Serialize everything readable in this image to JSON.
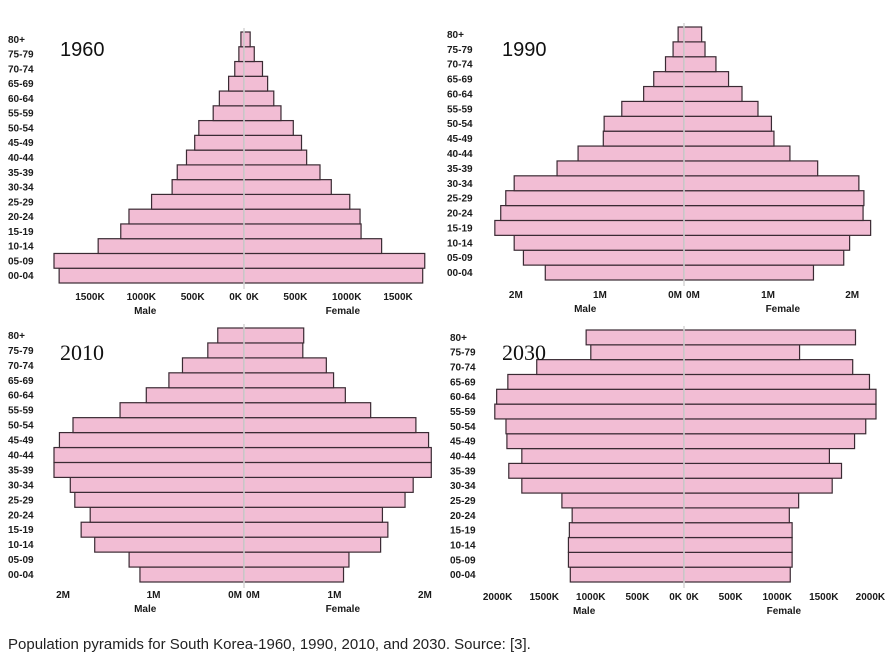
{
  "caption": "Population pyramids for South Korea-1960, 1990, 2010, and 2030. Source: [3].",
  "colors": {
    "bar_fill": "#f2bdd4",
    "bar_stroke": "#3a2a33",
    "center_line": "#d6d6d6",
    "background": "#ffffff"
  },
  "chart_data": [
    {
      "type": "bar",
      "orientation": "horizontal-pyramid",
      "title": "1960",
      "categories": [
        "00-04",
        "05-09",
        "10-14",
        "15-19",
        "20-24",
        "25-29",
        "30-34",
        "35-39",
        "40-44",
        "45-49",
        "50-54",
        "55-59",
        "60-64",
        "65-69",
        "70-74",
        "75-79",
        "80+"
      ],
      "series": [
        {
          "name": "Male",
          "values": [
            1800,
            1850,
            1420,
            1200,
            1120,
            900,
            700,
            650,
            560,
            480,
            440,
            300,
            240,
            150,
            90,
            50,
            30
          ]
        },
        {
          "name": "Female",
          "values": [
            1740,
            1760,
            1340,
            1140,
            1130,
            1030,
            850,
            740,
            610,
            560,
            480,
            360,
            290,
            230,
            180,
            100,
            60
          ]
        }
      ],
      "xlabel_left": "Male",
      "xlabel_right": "Female",
      "xticks_left": [
        "1500K",
        "1000K",
        "500K",
        "0K"
      ],
      "xtick_values": [
        1500,
        1000,
        500,
        0
      ],
      "xticks_right": [
        "0K",
        "500K",
        "1000K",
        "1500K"
      ],
      "xlim": [
        0,
        1850
      ]
    },
    {
      "type": "bar",
      "orientation": "horizontal-pyramid",
      "title": "1990",
      "categories": [
        "00-04",
        "05-09",
        "10-14",
        "15-19",
        "20-24",
        "25-29",
        "30-34",
        "35-39",
        "40-44",
        "45-49",
        "50-54",
        "55-59",
        "60-64",
        "65-69",
        "70-74",
        "75-79",
        "80+"
      ],
      "series": [
        {
          "name": "Male",
          "values": [
            1650,
            1910,
            2020,
            2250,
            2180,
            2120,
            2020,
            1510,
            1260,
            960,
            950,
            740,
            480,
            360,
            220,
            130,
            70
          ]
        },
        {
          "name": "Female",
          "values": [
            1540,
            1900,
            1970,
            2220,
            2130,
            2140,
            2080,
            1590,
            1260,
            1070,
            1040,
            880,
            690,
            530,
            380,
            250,
            210
          ]
        }
      ],
      "xlabel_left": "Male",
      "xlabel_right": "Female",
      "xticks_left": [
        "2M",
        "1M",
        "0M"
      ],
      "xtick_values": [
        2000,
        1000,
        0
      ],
      "xticks_right": [
        "0M",
        "1M",
        "2M"
      ],
      "xlim": [
        0,
        2260
      ]
    },
    {
      "type": "bar",
      "orientation": "horizontal-pyramid",
      "title": "2010",
      "categories": [
        "00-04",
        "05-09",
        "10-14",
        "15-19",
        "20-24",
        "25-29",
        "30-34",
        "35-39",
        "40-44",
        "45-49",
        "50-54",
        "55-59",
        "60-64",
        "65-69",
        "70-74",
        "75-79",
        "80+"
      ],
      "series": [
        {
          "name": "Male",
          "values": [
            1150,
            1270,
            1650,
            1800,
            1700,
            1870,
            1920,
            2100,
            2100,
            2040,
            1890,
            1370,
            1080,
            830,
            680,
            400,
            290
          ]
        },
        {
          "name": "Female",
          "values": [
            1100,
            1160,
            1510,
            1590,
            1530,
            1780,
            1870,
            2070,
            2070,
            2040,
            1900,
            1400,
            1120,
            990,
            910,
            650,
            660
          ]
        }
      ],
      "xlabel_left": "Male",
      "xlabel_right": "Female",
      "xticks_left": [
        "2M",
        "1M",
        "0M"
      ],
      "xtick_values": [
        2000,
        1000,
        0
      ],
      "xticks_right": [
        "0M",
        "1M",
        "2M"
      ],
      "xlim": [
        0,
        2100
      ]
    },
    {
      "type": "bar",
      "orientation": "horizontal-pyramid",
      "title": "2030",
      "categories": [
        "00-04",
        "05-09",
        "10-14",
        "15-19",
        "20-24",
        "25-29",
        "30-34",
        "35-39",
        "40-44",
        "45-49",
        "50-54",
        "55-59",
        "60-64",
        "65-69",
        "70-74",
        "75-79",
        "80+"
      ],
      "series": [
        {
          "name": "Male",
          "values": [
            1220,
            1240,
            1240,
            1230,
            1200,
            1310,
            1740,
            1880,
            1740,
            1900,
            1910,
            2030,
            2010,
            1890,
            1580,
            1000,
            1050
          ]
        },
        {
          "name": "Female",
          "values": [
            1140,
            1160,
            1160,
            1160,
            1130,
            1230,
            1590,
            1690,
            1560,
            1830,
            1950,
            2060,
            2060,
            1990,
            1810,
            1240,
            1840
          ]
        }
      ],
      "xlabel_left": "Male",
      "xlabel_right": "Female",
      "xticks_left": [
        "2000K",
        "1500K",
        "1000K",
        "500K",
        "0K"
      ],
      "xtick_values": [
        2000,
        1500,
        1000,
        500,
        0
      ],
      "xticks_right": [
        "0K",
        "500K",
        "1000K",
        "1500K",
        "2000K"
      ],
      "xlim": [
        0,
        2060
      ]
    }
  ]
}
